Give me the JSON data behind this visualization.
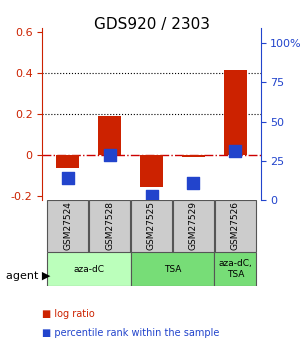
{
  "title": "GDS920 / 2303",
  "samples": [
    "GSM27524",
    "GSM27528",
    "GSM27525",
    "GSM27529",
    "GSM27526"
  ],
  "log_ratios": [
    -0.065,
    0.19,
    -0.155,
    -0.01,
    0.415
  ],
  "percentile_ranks": [
    0.14,
    0.29,
    0.025,
    0.11,
    0.315
  ],
  "bar_color": "#cc2200",
  "dot_color": "#2244cc",
  "agent_groups": [
    {
      "label": "aza-dC",
      "indices": [
        0,
        1
      ],
      "color": "#ccffcc"
    },
    {
      "label": "TSA",
      "indices": [
        2,
        3
      ],
      "color": "#88ee88"
    },
    {
      "label": "aza-dC,\nTSA",
      "indices": [
        4
      ],
      "color": "#88ee88"
    }
  ],
  "ylim_left": [
    -0.22,
    0.62
  ],
  "ylim_right": [
    0,
    110
  ],
  "yticks_left": [
    -0.2,
    0.0,
    0.2,
    0.4,
    0.6
  ],
  "yticks_right": [
    0,
    25,
    50,
    75,
    100
  ],
  "ytick_labels_left": [
    "-0.2",
    "0",
    "0.2",
    "0.4",
    "0.6"
  ],
  "ytick_labels_right": [
    "0",
    "25",
    "50",
    "75",
    "100%"
  ],
  "hlines": [
    0.2,
    0.4
  ],
  "zero_line_color": "#cc0000",
  "hline_color": "#000000",
  "bar_width": 0.55,
  "dot_size": 70,
  "legend_items": [
    {
      "color": "#cc2200",
      "label": "log ratio"
    },
    {
      "color": "#2244cc",
      "label": "percentile rank within the sample"
    }
  ]
}
